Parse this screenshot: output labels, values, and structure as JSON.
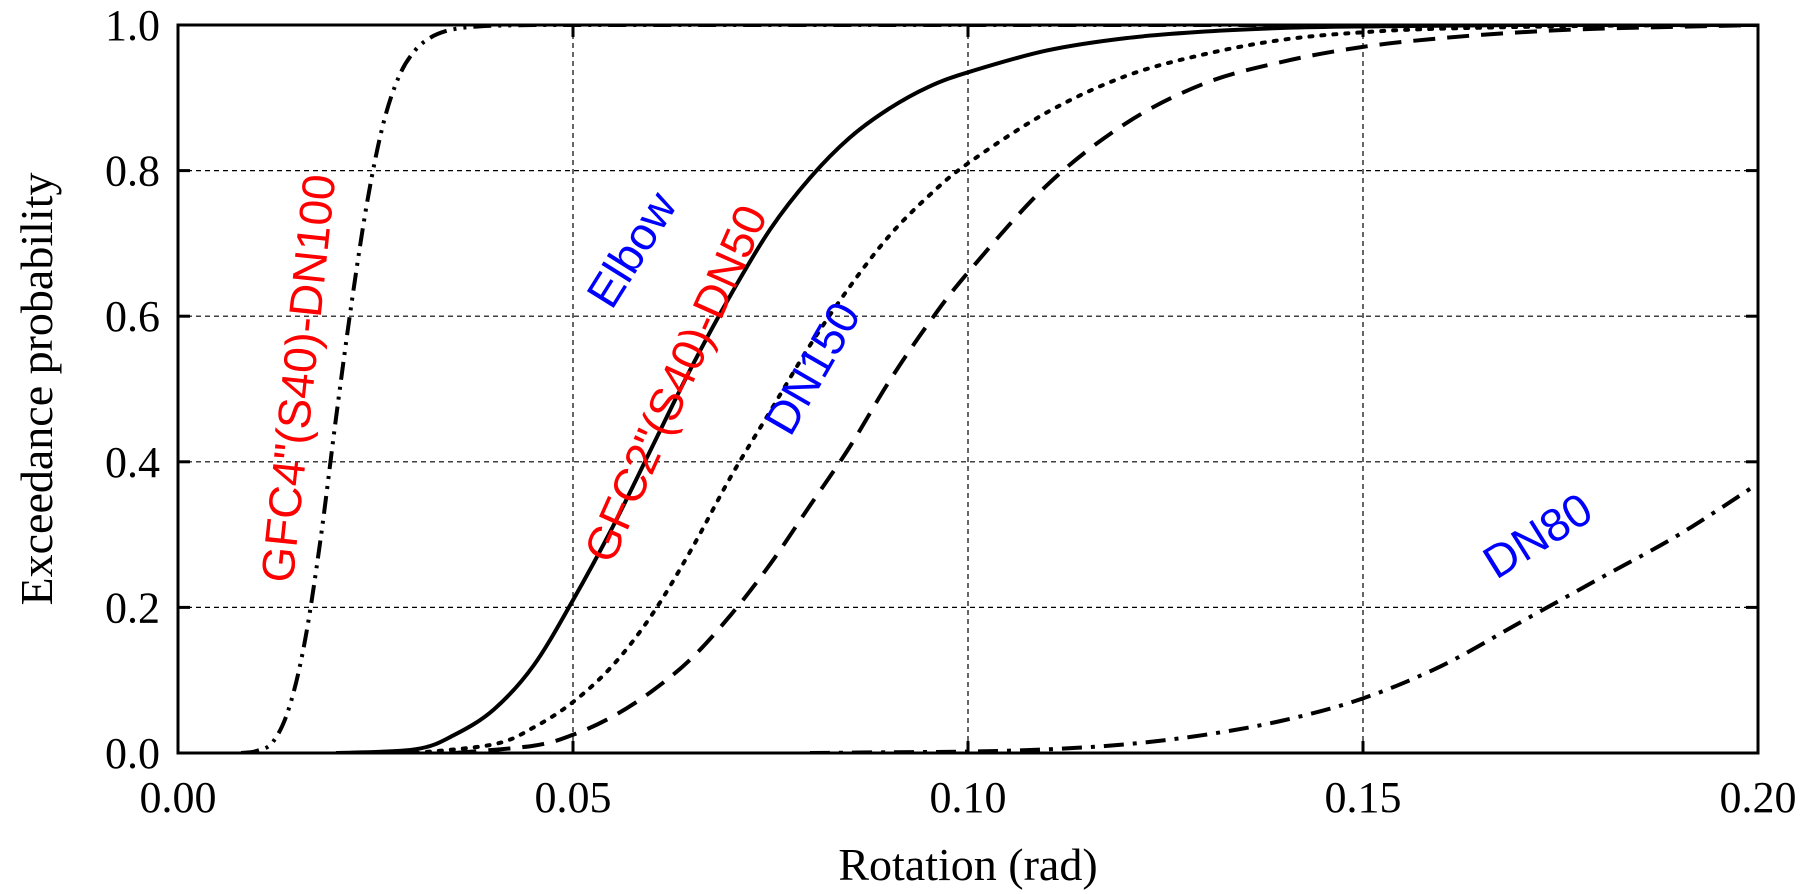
{
  "chart_data": {
    "type": "line",
    "title": "",
    "xlabel": "Rotation (rad)",
    "ylabel": "Exceedance probability",
    "xlim": [
      0,
      0.2
    ],
    "ylim": [
      0,
      1
    ],
    "xticks": [
      0,
      0.05,
      0.1,
      0.15,
      0.2
    ],
    "xtick_labels": [
      "0.00",
      "0.05",
      "0.10",
      "0.15",
      "0.20"
    ],
    "yticks": [
      0,
      0.2,
      0.4,
      0.6,
      0.8,
      1
    ],
    "ytick_labels": [
      "0.0",
      "0.2",
      "0.4",
      "0.6",
      "0.8",
      "1.0"
    ],
    "grid": true,
    "legend": "none",
    "series": [
      {
        "name": "GFC4\"(S40)-DN100",
        "label_color": "#ff0000",
        "line_style": "dash-dot-dot",
        "x": [
          0.008,
          0.01,
          0.012,
          0.014,
          0.016,
          0.018,
          0.02,
          0.022,
          0.024,
          0.026,
          0.028,
          0.03,
          0.032,
          0.034,
          0.036,
          0.038,
          0.04,
          0.045,
          0.05,
          0.06,
          0.08,
          0.1,
          0.15,
          0.2
        ],
        "y": [
          0.0,
          0.003,
          0.015,
          0.06,
          0.15,
          0.29,
          0.46,
          0.62,
          0.76,
          0.865,
          0.93,
          0.965,
          0.983,
          0.992,
          0.996,
          0.998,
          0.999,
          1.0,
          1.0,
          1.0,
          1.0,
          1.0,
          1.0,
          1.0
        ]
      },
      {
        "name": "Elbow",
        "label_color": "#0000ff",
        "line_style": "solid",
        "x": [
          0.02,
          0.03,
          0.035,
          0.04,
          0.045,
          0.05,
          0.055,
          0.06,
          0.065,
          0.07,
          0.075,
          0.08,
          0.085,
          0.09,
          0.095,
          0.1,
          0.11,
          0.12,
          0.13,
          0.14,
          0.15,
          0.17,
          0.2
        ],
        "y": [
          0.0,
          0.005,
          0.025,
          0.06,
          0.12,
          0.21,
          0.31,
          0.42,
          0.53,
          0.63,
          0.72,
          0.79,
          0.845,
          0.885,
          0.915,
          0.935,
          0.965,
          0.982,
          0.991,
          0.996,
          0.998,
          1.0,
          1.0
        ]
      },
      {
        "name": "GFC2\"(S40)-DN50",
        "label_color": "#ff0000",
        "line_style": "dotted",
        "x": [
          0.03,
          0.04,
          0.045,
          0.05,
          0.055,
          0.06,
          0.065,
          0.07,
          0.075,
          0.08,
          0.085,
          0.09,
          0.095,
          0.1,
          0.11,
          0.12,
          0.13,
          0.14,
          0.15,
          0.16,
          0.18,
          0.2
        ],
        "y": [
          0.0,
          0.012,
          0.035,
          0.07,
          0.12,
          0.19,
          0.28,
          0.38,
          0.47,
          0.56,
          0.64,
          0.71,
          0.765,
          0.81,
          0.88,
          0.93,
          0.96,
          0.98,
          0.99,
          0.995,
          0.999,
          1.0
        ]
      },
      {
        "name": "DN150",
        "label_color": "#0000ff",
        "line_style": "dashed",
        "x": [
          0.035,
          0.045,
          0.05,
          0.055,
          0.06,
          0.065,
          0.07,
          0.075,
          0.08,
          0.085,
          0.09,
          0.095,
          0.1,
          0.11,
          0.12,
          0.13,
          0.14,
          0.15,
          0.16,
          0.17,
          0.18,
          0.2
        ],
        "y": [
          0.0,
          0.01,
          0.025,
          0.05,
          0.085,
          0.13,
          0.19,
          0.26,
          0.34,
          0.42,
          0.51,
          0.59,
          0.66,
          0.78,
          0.865,
          0.92,
          0.95,
          0.97,
          0.982,
          0.99,
          0.995,
          1.0
        ]
      },
      {
        "name": "DN80",
        "label_color": "#0000ff",
        "line_style": "dash-dot",
        "x": [
          0.08,
          0.09,
          0.1,
          0.11,
          0.12,
          0.13,
          0.14,
          0.15,
          0.16,
          0.17,
          0.18,
          0.19,
          0.2
        ],
        "y": [
          0.0,
          0.001,
          0.002,
          0.005,
          0.012,
          0.025,
          0.045,
          0.075,
          0.12,
          0.18,
          0.24,
          0.3,
          0.37
        ]
      }
    ]
  }
}
